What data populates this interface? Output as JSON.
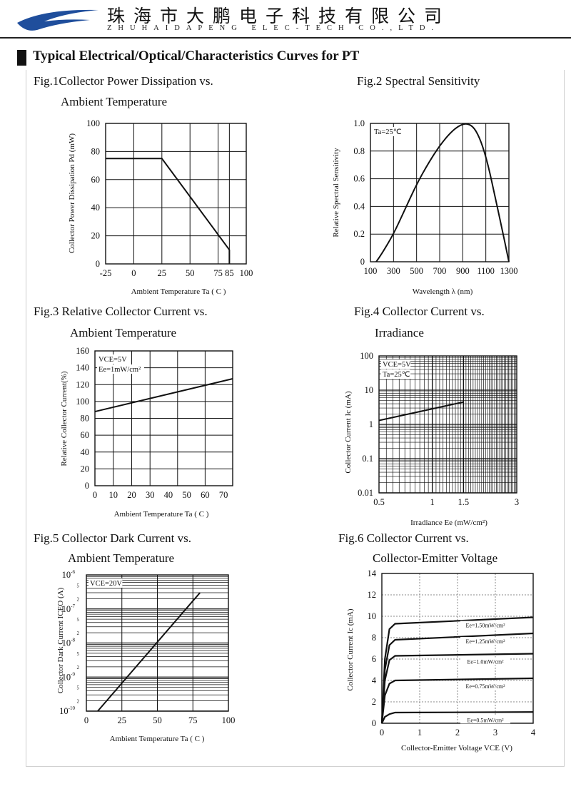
{
  "header": {
    "company_cn": "珠海市大鹏电子科技有限公司",
    "company_en": "ZHUHAIDAPENG ELEC-TECH CO.,LTD."
  },
  "section_title": "Typical Electrical/Optical/Characteristics Curves for PT",
  "charts": [
    {
      "caption": [
        "Fig.1Collector Power Dissipation vs.",
        "Ambient Temperature"
      ],
      "chart_data": {
        "type": "line",
        "xlabel": "Ambient Temperature Ta ( C )",
        "ylabel": "Collector Power Dissipation Pd (mW)",
        "xlim": [
          -25,
          100
        ],
        "ylim": [
          0,
          100
        ],
        "xticks": [
          -25,
          0,
          25,
          50,
          75,
          85,
          100
        ],
        "xtick_labels": [
          "-25",
          "0",
          "25",
          "50",
          "75",
          "85",
          "100"
        ],
        "yticks": [
          0,
          20,
          40,
          60,
          80,
          100
        ],
        "ytick_labels": [
          "0",
          "20",
          "40",
          "60",
          "80",
          "100"
        ],
        "xgrid": [
          0,
          25,
          50,
          75,
          85
        ],
        "ygrid": [
          20,
          40,
          60,
          80
        ],
        "series": [
          {
            "x": [
              -25,
              25,
              85,
              85
            ],
            "y": [
              75,
              75,
              10,
              0
            ]
          }
        ]
      }
    },
    {
      "caption": [
        "Fig.2 Spectral Sensitivity"
      ],
      "chart_data": {
        "type": "line",
        "xlabel": "Wavelength λ (nm)",
        "ylabel": "Relative Spectral Sensitivity",
        "annotation": "Ta=25℃",
        "xlim": [
          100,
          1300
        ],
        "ylim": [
          0,
          1.0
        ],
        "xticks": [
          100,
          300,
          500,
          700,
          900,
          1100,
          1300
        ],
        "xtick_labels": [
          "100",
          "300",
          "500",
          "700",
          "900",
          "1100",
          "1300"
        ],
        "yticks": [
          0,
          0.2,
          0.4,
          0.6,
          0.8,
          1.0
        ],
        "ytick_labels": [
          "0",
          "0.2",
          "0.4",
          "0.6",
          "0.8",
          "1.0"
        ],
        "xgrid": [
          300,
          500,
          700,
          900,
          1100
        ],
        "ygrid": [
          0.2,
          0.4,
          0.6,
          0.8
        ],
        "series": [
          {
            "x": [
              150,
              200,
              300,
              400,
              500,
              600,
              700,
              800,
              880,
              940,
              1000,
              1060,
              1120,
              1180,
              1240,
              1280,
              1300
            ],
            "y": [
              0,
              0.06,
              0.2,
              0.38,
              0.56,
              0.71,
              0.84,
              0.94,
              0.99,
              1.0,
              0.97,
              0.87,
              0.7,
              0.47,
              0.24,
              0.08,
              0
            ]
          }
        ]
      }
    },
    {
      "caption": [
        "Fig.3 Relative Collector Current vs.",
        "Ambient Temperature"
      ],
      "chart_data": {
        "type": "line",
        "xlabel": "Ambient Temperature Ta ( C )",
        "ylabel": "Relative Collector Current(%)",
        "annotation": [
          "VCE=5V",
          "Ee=1mW/cm²"
        ],
        "xlim": [
          0,
          75
        ],
        "ylim": [
          0,
          160
        ],
        "xticks": [
          0,
          10,
          20,
          30,
          40,
          50,
          60,
          70
        ],
        "xtick_labels": [
          "0",
          "10",
          "20",
          "30",
          "40",
          "50",
          "60",
          "70"
        ],
        "yticks": [
          0,
          20,
          40,
          60,
          80,
          100,
          120,
          140,
          160
        ],
        "ytick_labels": [
          "0",
          "20",
          "40",
          "60",
          "80",
          "100",
          "120",
          "140",
          "160"
        ],
        "xgrid": [
          10,
          20,
          30,
          45,
          60
        ],
        "ygrid": [
          20,
          40,
          60,
          80,
          100,
          120,
          140
        ],
        "series": [
          {
            "x": [
              0,
              75
            ],
            "y": [
              88,
              127
            ]
          }
        ]
      }
    },
    {
      "caption": [
        "Fig.4 Collector Current vs.",
        "Irradiance"
      ],
      "chart_data": {
        "type": "line",
        "xlabel": "Irradiance Ee (mW/cm²)",
        "ylabel": "Collector Current Ic (mA)",
        "annotation": [
          "VCE=5V",
          "Ta=25℃"
        ],
        "xscale": "log",
        "yscale": "log",
        "xlim": [
          0.5,
          3
        ],
        "ylim": [
          0.01,
          100
        ],
        "xticks": [
          0.5,
          1,
          1.5,
          3
        ],
        "xtick_labels": [
          "0.5",
          "1",
          "1.5",
          "3"
        ],
        "yticks": [
          0.01,
          0.1,
          1,
          10,
          100
        ],
        "ytick_labels": [
          "0.01",
          "0.1",
          "1",
          "10",
          "100"
        ],
        "series": [
          {
            "x": [
              0.5,
              1.5
            ],
            "y": [
              1.3,
              4.5
            ]
          }
        ]
      }
    },
    {
      "caption": [
        "Fig.5 Collector Dark Current vs.",
        "Ambient Temperature"
      ],
      "chart_data": {
        "type": "line",
        "xlabel": "Ambient Temperature Ta ( C )",
        "ylabel": "Collector Dark Current ICEO (A)",
        "annotation": "VCE=20V",
        "yscale": "log",
        "xlim": [
          0,
          100
        ],
        "ylim": [
          1e-10,
          1e-06
        ],
        "xticks": [
          0,
          25,
          50,
          75,
          100
        ],
        "xtick_labels": [
          "0",
          "25",
          "50",
          "75",
          "100"
        ],
        "yticks": [
          1e-10,
          1e-09,
          1e-08,
          1e-07,
          1e-06
        ],
        "ytick_labels": [
          "10",
          "10",
          "10",
          "10",
          "10"
        ],
        "ytick_exponents": [
          "-10",
          "-9",
          "-8",
          "-7",
          "-6"
        ],
        "minor_tick_labels": [
          "2",
          "5"
        ],
        "xgrid": [
          25,
          50,
          75
        ],
        "series": [
          {
            "x": [
              8,
              80
            ],
            "y": [
              1e-10,
              3e-07
            ]
          }
        ]
      }
    },
    {
      "caption": [
        "Fig.6 Collector Current vs.",
        "Collector-Emitter Voltage"
      ],
      "chart_data": {
        "type": "line",
        "xlabel": "Collector-Emitter Voltage VCE (V)",
        "ylabel": "Collector Current Ic (mA)",
        "xlim": [
          0,
          4
        ],
        "ylim": [
          0,
          14
        ],
        "xticks": [
          0,
          1,
          2,
          3,
          4
        ],
        "xtick_labels": [
          "0",
          "1",
          "2",
          "3",
          "4"
        ],
        "yticks": [
          0,
          2,
          4,
          6,
          8,
          10,
          12,
          14
        ],
        "ytick_labels": [
          "0",
          "2",
          "4",
          "6",
          "8",
          "10",
          "12",
          "14"
        ],
        "xgrid": [
          1,
          2,
          3
        ],
        "ygrid": [
          2,
          4,
          6,
          8,
          10,
          12
        ],
        "series": [
          {
            "name": "Ee=1.50mW/cm²",
            "x": [
              0,
              0.08,
              0.2,
              0.35,
              4
            ],
            "y": [
              0,
              6,
              8.8,
              9.3,
              9.9
            ]
          },
          {
            "name": "Ee=1.25mW/cm²",
            "x": [
              0,
              0.08,
              0.2,
              0.35,
              4
            ],
            "y": [
              0,
              5,
              7.3,
              7.8,
              8.4
            ]
          },
          {
            "name": "Ee=1.0mW/cm²",
            "x": [
              0,
              0.08,
              0.2,
              0.35,
              4
            ],
            "y": [
              0,
              4,
              5.9,
              6.3,
              6.5
            ]
          },
          {
            "name": "Ee=0.75mW/cm²",
            "x": [
              0,
              0.08,
              0.2,
              0.35,
              4
            ],
            "y": [
              0,
              2.6,
              3.7,
              4.0,
              4.2
            ]
          },
          {
            "name": "Ee=0.5mW/cm²",
            "x": [
              0,
              0.08,
              0.2,
              0.35,
              4
            ],
            "y": [
              0,
              0.6,
              0.85,
              1.0,
              1.05
            ]
          }
        ]
      }
    }
  ]
}
